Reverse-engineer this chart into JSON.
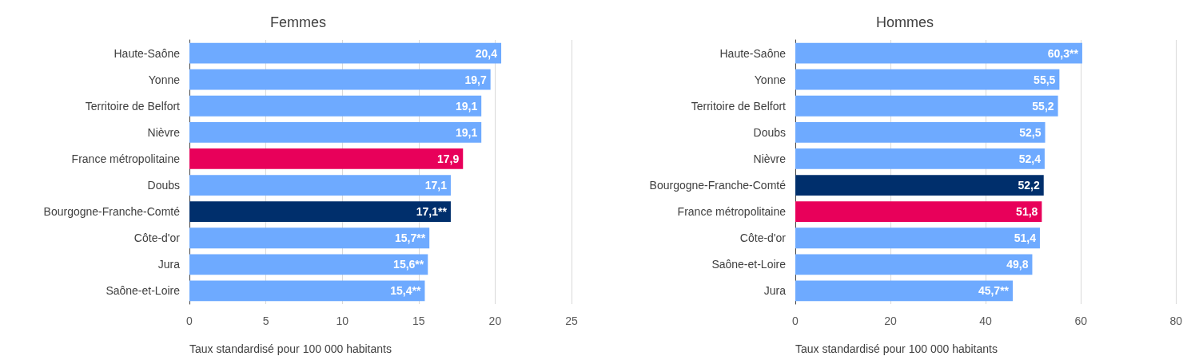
{
  "chart_data": [
    {
      "type": "bar",
      "orientation": "horizontal",
      "title": "Femmes",
      "xlabel": "Taux standardisé pour 100 000 habitants",
      "categories": [
        "Haute-Saône",
        "Yonne",
        "Territoire de Belfort",
        "Nièvre",
        "France métropolitaine",
        "Doubs",
        "Bourgogne-Franche-Comté",
        "Côte-d'or",
        "Jura",
        "Saône-et-Loire"
      ],
      "values": [
        20.4,
        19.7,
        19.1,
        19.1,
        17.9,
        17.1,
        17.1,
        15.7,
        15.6,
        15.4
      ],
      "colors": [
        "#6eaaff",
        "#6eaaff",
        "#6eaaff",
        "#6eaaff",
        "#e8005a",
        "#6eaaff",
        "#002f6c",
        "#6eaaff",
        "#6eaaff",
        "#6eaaff"
      ],
      "value_labels": [
        "20,4",
        "19,7",
        "19,1",
        "19,1",
        "17,9",
        "17,1",
        "17,1**",
        "15,7**",
        "15,6**",
        "15,4**"
      ],
      "xlim": [
        0,
        25
      ],
      "xticks": [
        0,
        5,
        10,
        15,
        20,
        25
      ],
      "grid": "x"
    },
    {
      "type": "bar",
      "orientation": "horizontal",
      "title": "Hommes",
      "xlabel": "Taux standardisé pour 100 000 habitants",
      "categories": [
        "Haute-Saône",
        "Yonne",
        "Territoire de Belfort",
        "Doubs",
        "Nièvre",
        "Bourgogne-Franche-Comté",
        "France métropolitaine",
        "Côte-d'or",
        "Saône-et-Loire",
        "Jura"
      ],
      "values": [
        60.3,
        55.5,
        55.2,
        52.5,
        52.4,
        52.2,
        51.8,
        51.4,
        49.8,
        45.7
      ],
      "colors": [
        "#6eaaff",
        "#6eaaff",
        "#6eaaff",
        "#6eaaff",
        "#6eaaff",
        "#002f6c",
        "#e8005a",
        "#6eaaff",
        "#6eaaff",
        "#6eaaff"
      ],
      "value_labels": [
        "60,3**",
        "55,5",
        "55,2",
        "52,5",
        "52,4",
        "52,2",
        "51,8",
        "51,4",
        "49,8",
        "45,7**"
      ],
      "xlim": [
        0,
        80
      ],
      "xticks": [
        0,
        20,
        40,
        60,
        80
      ],
      "grid": "x"
    }
  ]
}
